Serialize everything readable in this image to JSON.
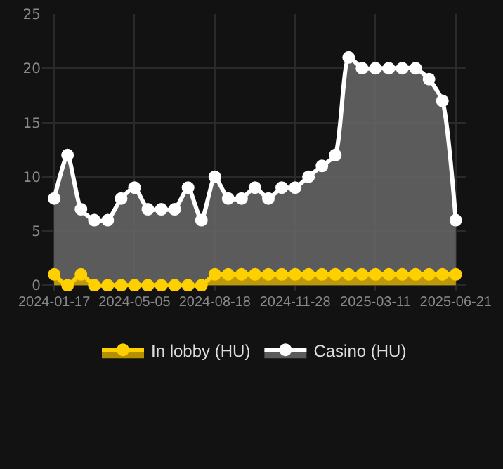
{
  "chart_data": {
    "type": "area",
    "categories": [
      "2024-01-17",
      null,
      null,
      null,
      null,
      null,
      "2024-05-05",
      null,
      null,
      null,
      null,
      null,
      "2024-08-18",
      null,
      null,
      null,
      null,
      null,
      "2024-11-28",
      null,
      null,
      null,
      null,
      null,
      "2025-03-11",
      null,
      null,
      null,
      null,
      null,
      "2025-06-21"
    ],
    "series": [
      {
        "name": "In lobby (HU)",
        "color": "#ffd000",
        "values": [
          1,
          0,
          1,
          0,
          0,
          0,
          0,
          0,
          0,
          0,
          0,
          0,
          1,
          1,
          1,
          1,
          1,
          1,
          1,
          1,
          1,
          1,
          1,
          1,
          1,
          1,
          1,
          1,
          1,
          1,
          1
        ]
      },
      {
        "name": "Casino (HU)",
        "color": "#ffffff",
        "values": [
          8,
          12,
          7,
          6,
          6,
          8,
          9,
          7,
          7,
          7,
          9,
          6,
          10,
          8,
          8,
          9,
          8,
          9,
          9,
          10,
          11,
          12,
          21,
          20,
          20,
          20,
          20,
          20,
          19,
          17,
          6
        ]
      }
    ],
    "ylim": [
      -0.5,
      25
    ],
    "yticks": [
      0,
      5,
      10,
      15,
      20,
      25
    ],
    "grid": true,
    "legend": "bottom",
    "marker": "circle",
    "line_style": "solid"
  }
}
